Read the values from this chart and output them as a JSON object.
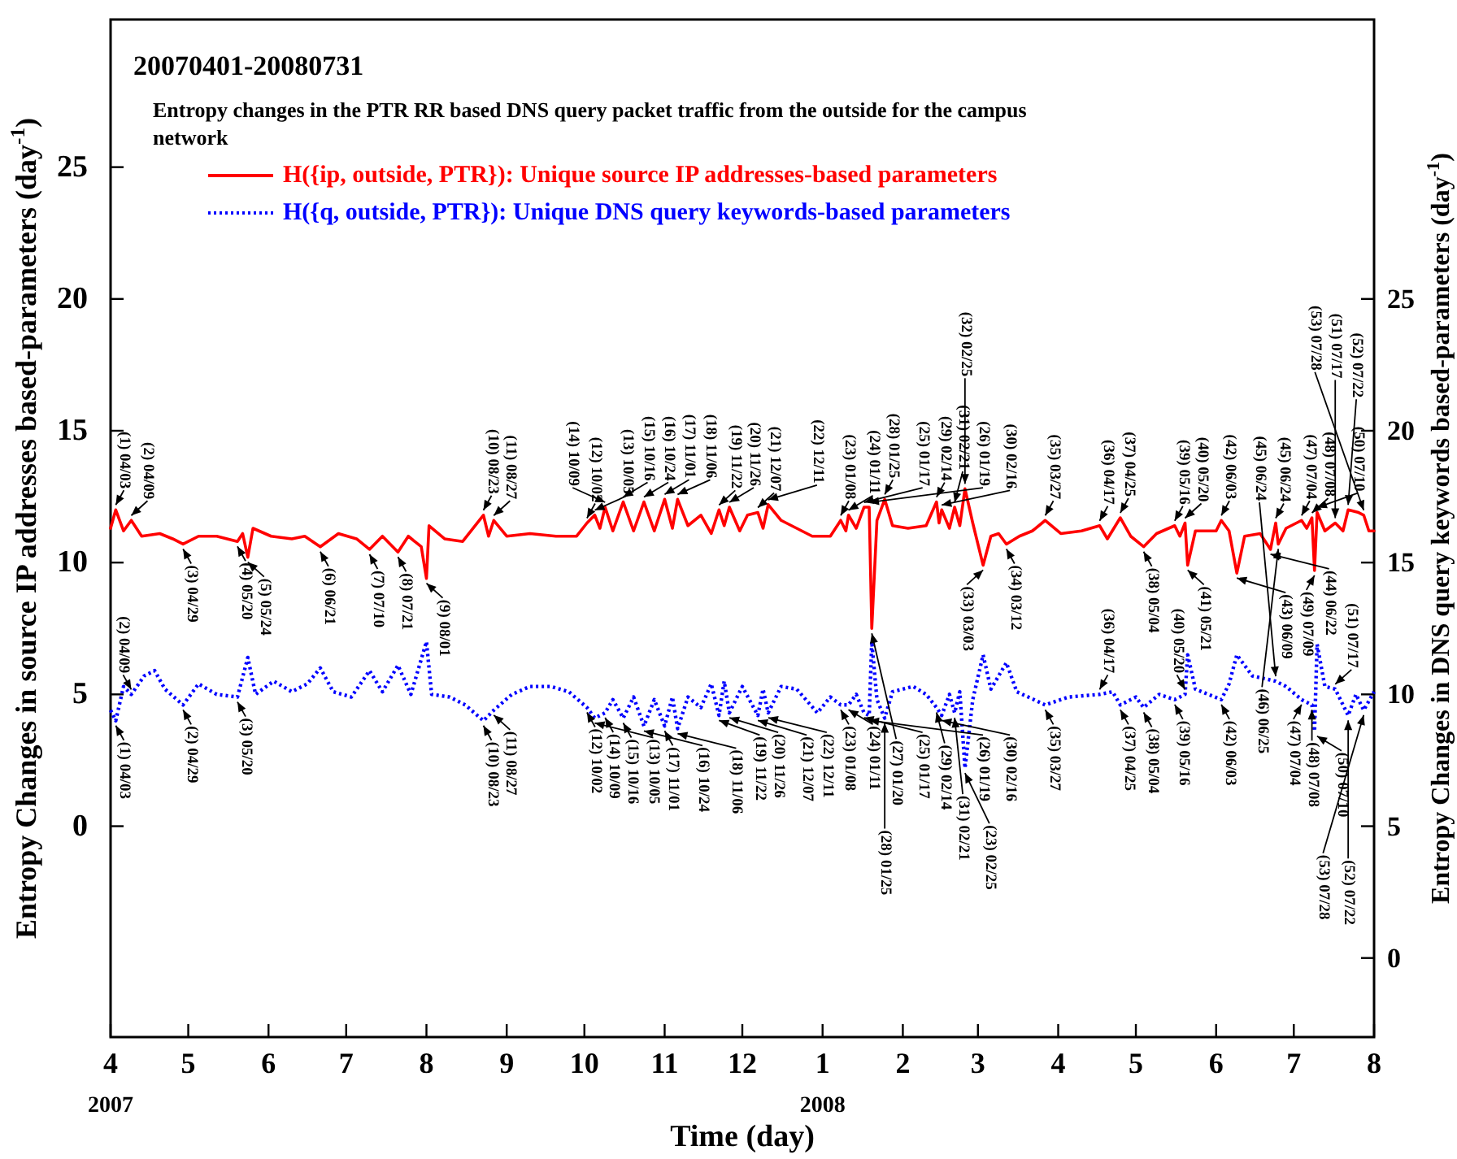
{
  "chart_data": {
    "type": "line",
    "title": "20070401-20080731",
    "subtitle": "Entropy changes in the PTR RR based DNS query packet traffic from the outside for the campus network",
    "xlabel": "Time (day)",
    "ylabel": "Entropy Changes in source IP addresses based-parameters (day$^{-1}$)",
    "y2label": "Entropy Changes in DNS query keywords based-parameters (day$^{-1}$)",
    "legend": "top left",
    "grid": false,
    "marker": "none",
    "xlim": [
      "2007-04-01",
      "2008-08-01"
    ],
    "xticks": [
      {
        "value": "2007-04-01",
        "label": "4"
      },
      {
        "value": "2007-05-01",
        "label": "5"
      },
      {
        "value": "2007-06-01",
        "label": "6"
      },
      {
        "value": "2007-07-01",
        "label": "7"
      },
      {
        "value": "2007-08-01",
        "label": "8"
      },
      {
        "value": "2007-09-01",
        "label": "9"
      },
      {
        "value": "2007-10-01",
        "label": "10"
      },
      {
        "value": "2007-11-01",
        "label": "11"
      },
      {
        "value": "2007-12-01",
        "label": "12"
      },
      {
        "value": "2008-01-01",
        "label": "1"
      },
      {
        "value": "2008-02-01",
        "label": "2"
      },
      {
        "value": "2008-03-01",
        "label": "3"
      },
      {
        "value": "2008-04-01",
        "label": "4"
      },
      {
        "value": "2008-05-01",
        "label": "5"
      },
      {
        "value": "2008-06-01",
        "label": "6"
      },
      {
        "value": "2008-07-01",
        "label": "7"
      },
      {
        "value": "2008-08-01",
        "label": "8"
      }
    ],
    "ylim": [
      -8,
      30.6
    ],
    "yticks": [
      0,
      5,
      10,
      15,
      20,
      25
    ],
    "y2lim": [
      -3,
      35.6
    ],
    "y2ticks": [
      0,
      5,
      10,
      15,
      20,
      25
    ],
    "series": [
      {
        "name": "H({ip, outside, PTR}): Unique source IP addresses-based parameters",
        "color": "#ff0000",
        "line_style": "solid",
        "x": [
          "2007-04-01",
          "2007-04-03",
          "2007-04-06",
          "2007-04-09",
          "2007-04-13",
          "2007-04-20",
          "2007-04-25",
          "2007-04-29",
          "2007-05-05",
          "2007-05-12",
          "2007-05-20",
          "2007-05-22",
          "2007-05-24",
          "2007-05-26",
          "2007-06-02",
          "2007-06-10",
          "2007-06-15",
          "2007-06-21",
          "2007-06-28",
          "2007-07-05",
          "2007-07-10",
          "2007-07-15",
          "2007-07-21",
          "2007-07-25",
          "2007-07-30",
          "2007-08-01",
          "2007-08-02",
          "2007-08-08",
          "2007-08-15",
          "2007-08-23",
          "2007-08-25",
          "2007-08-27",
          "2007-09-01",
          "2007-09-10",
          "2007-09-20",
          "2007-09-28",
          "2007-10-02",
          "2007-10-05",
          "2007-10-07",
          "2007-10-09",
          "2007-10-12",
          "2007-10-16",
          "2007-10-20",
          "2007-10-24",
          "2007-10-28",
          "2007-11-01",
          "2007-11-04",
          "2007-11-06",
          "2007-11-10",
          "2007-11-15",
          "2007-11-19",
          "2007-11-22",
          "2007-11-24",
          "2007-11-26",
          "2007-11-30",
          "2007-12-03",
          "2007-12-07",
          "2007-12-09",
          "2007-12-11",
          "2007-12-16",
          "2007-12-22",
          "2007-12-28",
          "2008-01-04",
          "2008-01-08",
          "2008-01-10",
          "2008-01-11",
          "2008-01-14",
          "2008-01-17",
          "2008-01-19",
          "2008-01-20",
          "2008-01-22",
          "2008-01-25",
          "2008-01-28",
          "2008-02-03",
          "2008-02-10",
          "2008-02-14",
          "2008-02-15",
          "2008-02-16",
          "2008-02-19",
          "2008-02-21",
          "2008-02-23",
          "2008-02-25",
          "2008-02-28",
          "2008-03-03",
          "2008-03-06",
          "2008-03-09",
          "2008-03-12",
          "2008-03-17",
          "2008-03-22",
          "2008-03-27",
          "2008-04-02",
          "2008-04-10",
          "2008-04-17",
          "2008-04-20",
          "2008-04-25",
          "2008-04-29",
          "2008-05-04",
          "2008-05-09",
          "2008-05-16",
          "2008-05-18",
          "2008-05-20",
          "2008-05-21",
          "2008-05-24",
          "2008-06-01",
          "2008-06-03",
          "2008-06-06",
          "2008-06-09",
          "2008-06-12",
          "2008-06-18",
          "2008-06-22",
          "2008-06-24",
          "2008-06-25",
          "2008-06-28",
          "2008-07-04",
          "2008-07-06",
          "2008-07-08",
          "2008-07-09",
          "2008-07-10",
          "2008-07-13",
          "2008-07-17",
          "2008-07-20",
          "2008-07-22",
          "2008-07-26",
          "2008-07-28",
          "2008-07-30",
          "2008-08-01"
        ],
        "values": [
          11.3,
          12.0,
          11.2,
          11.6,
          11.0,
          11.1,
          10.9,
          10.7,
          11.0,
          11.0,
          10.8,
          11.1,
          10.2,
          11.3,
          11.0,
          10.9,
          11.0,
          10.6,
          11.1,
          10.9,
          10.5,
          11.0,
          10.4,
          11.0,
          10.6,
          9.4,
          11.4,
          10.9,
          10.8,
          11.8,
          11.0,
          11.6,
          11.0,
          11.1,
          11.0,
          11.0,
          11.5,
          11.8,
          11.3,
          12.1,
          11.2,
          12.3,
          11.2,
          12.3,
          11.2,
          12.4,
          11.3,
          12.4,
          11.4,
          11.8,
          11.1,
          12.0,
          11.4,
          12.1,
          11.2,
          11.8,
          11.9,
          11.3,
          12.2,
          11.6,
          11.3,
          11.0,
          11.0,
          11.6,
          11.2,
          11.8,
          11.3,
          12.1,
          12.1,
          7.5,
          11.6,
          12.4,
          11.4,
          11.3,
          11.4,
          12.3,
          11.5,
          12.0,
          11.3,
          12.1,
          11.4,
          12.8,
          11.5,
          9.9,
          11.0,
          11.1,
          10.7,
          11.0,
          11.2,
          11.6,
          11.1,
          11.2,
          11.4,
          10.9,
          11.7,
          11.0,
          10.6,
          11.1,
          11.4,
          11.0,
          11.5,
          9.9,
          11.2,
          11.2,
          11.6,
          11.2,
          9.6,
          11.0,
          11.1,
          10.5,
          11.5,
          10.7,
          11.3,
          11.6,
          11.3,
          11.7,
          9.7,
          11.9,
          11.2,
          11.5,
          11.2,
          12.0,
          11.9,
          11.8,
          11.2,
          11.2
        ]
      },
      {
        "name": "H({q, outside, PTR}): Unique DNS query keywords-based parameters",
        "color": "#0000ff",
        "line_style": "dotted",
        "axis": "y2",
        "x": [
          "2007-04-01",
          "2007-04-03",
          "2007-04-06",
          "2007-04-09",
          "2007-04-14",
          "2007-04-18",
          "2007-04-22",
          "2007-04-29",
          "2007-05-05",
          "2007-05-12",
          "2007-05-20",
          "2007-05-24",
          "2007-05-27",
          "2007-06-03",
          "2007-06-10",
          "2007-06-16",
          "2007-06-21",
          "2007-06-26",
          "2007-07-03",
          "2007-07-10",
          "2007-07-15",
          "2007-07-21",
          "2007-07-26",
          "2007-08-01",
          "2007-08-03",
          "2007-08-10",
          "2007-08-16",
          "2007-08-23",
          "2007-08-27",
          "2007-09-03",
          "2007-09-10",
          "2007-09-18",
          "2007-09-25",
          "2007-10-02",
          "2007-10-05",
          "2007-10-09",
          "2007-10-12",
          "2007-10-16",
          "2007-10-20",
          "2007-10-24",
          "2007-10-28",
          "2007-11-01",
          "2007-11-04",
          "2007-11-06",
          "2007-11-10",
          "2007-11-15",
          "2007-11-19",
          "2007-11-22",
          "2007-11-24",
          "2007-11-26",
          "2007-12-01",
          "2007-12-07",
          "2007-12-09",
          "2007-12-11",
          "2007-12-16",
          "2007-12-22",
          "2007-12-30",
          "2008-01-04",
          "2008-01-08",
          "2008-01-11",
          "2008-01-14",
          "2008-01-17",
          "2008-01-19",
          "2008-01-20",
          "2008-01-22",
          "2008-01-25",
          "2008-01-28",
          "2008-02-05",
          "2008-02-10",
          "2008-02-14",
          "2008-02-16",
          "2008-02-19",
          "2008-02-21",
          "2008-02-23",
          "2008-02-25",
          "2008-02-28",
          "2008-03-03",
          "2008-03-06",
          "2008-03-12",
          "2008-03-16",
          "2008-03-27",
          "2008-04-05",
          "2008-04-17",
          "2008-04-22",
          "2008-04-25",
          "2008-05-01",
          "2008-05-04",
          "2008-05-10",
          "2008-05-16",
          "2008-05-20",
          "2008-05-21",
          "2008-05-24",
          "2008-06-03",
          "2008-06-06",
          "2008-06-09",
          "2008-06-15",
          "2008-06-24",
          "2008-06-28",
          "2008-07-04",
          "2008-07-08",
          "2008-07-09",
          "2008-07-10",
          "2008-07-13",
          "2008-07-17",
          "2008-07-22",
          "2008-07-25",
          "2008-07-28",
          "2008-08-01"
        ],
        "values": [
          9.4,
          9.0,
          10.3,
          10.0,
          10.7,
          10.9,
          10.2,
          9.6,
          10.4,
          10.0,
          9.9,
          11.4,
          10.0,
          10.5,
          10.1,
          10.4,
          11.0,
          10.1,
          9.9,
          10.9,
          10.1,
          11.1,
          10.0,
          12.0,
          10.0,
          9.9,
          9.6,
          9.0,
          9.4,
          10.0,
          10.3,
          10.3,
          10.1,
          9.5,
          9.1,
          9.3,
          9.8,
          9.1,
          9.9,
          8.8,
          9.8,
          8.8,
          9.9,
          8.7,
          9.9,
          9.5,
          10.4,
          9.2,
          10.5,
          9.3,
          10.3,
          9.2,
          10.2,
          9.3,
          10.3,
          10.2,
          9.3,
          9.9,
          9.6,
          9.6,
          10.0,
          9.3,
          9.2,
          12.0,
          9.8,
          9.1,
          10.1,
          10.3,
          10.0,
          9.5,
          9.2,
          10.0,
          9.3,
          10.1,
          7.2,
          9.8,
          11.5,
          10.2,
          11.2,
          10.1,
          9.6,
          9.9,
          10.0,
          10.1,
          9.6,
          9.9,
          9.5,
          10.0,
          9.8,
          10.0,
          11.5,
          10.2,
          9.8,
          10.4,
          11.5,
          10.7,
          10.5,
          10.3,
          9.8,
          9.6,
          8.6,
          11.9,
          10.3,
          10.2,
          9.2,
          10.0,
          9.4,
          10.1
        ]
      }
    ],
    "annotations": [
      {
        "text": "(1) 04/03",
        "x": "2007-04-03",
        "y": 12.0
      },
      {
        "text": "(2) 04/09",
        "x": "2007-04-09",
        "y": 11.6
      },
      {
        "text": "(3) 04/29",
        "x": "2007-04-29",
        "y": 10.7
      },
      {
        "text": "(4) 05/20",
        "x": "2007-05-20",
        "y": 10.8
      },
      {
        "text": "(5) 05/24",
        "x": "2007-05-24",
        "y": 10.2
      },
      {
        "text": "(6) 06/21",
        "x": "2007-06-21",
        "y": 10.6
      },
      {
        "text": "(7) 07/10",
        "x": "2007-07-10",
        "y": 10.5
      },
      {
        "text": "(8) 07/21",
        "x": "2007-07-21",
        "y": 10.4
      },
      {
        "text": "(9) 08/01",
        "x": "2007-08-01",
        "y": 9.4
      },
      {
        "text": "(10) 08/23",
        "x": "2007-08-23",
        "y": 11.8
      },
      {
        "text": "(11) 08/27",
        "x": "2007-08-27",
        "y": 11.6
      },
      {
        "text": "(12) 10/02",
        "x": "2007-10-02",
        "y": 11.5
      },
      {
        "text": "(13) 10/05",
        "x": "2007-10-05",
        "y": 11.8
      },
      {
        "text": "(14) 10/09",
        "x": "2007-10-09",
        "y": 12.1
      },
      {
        "text": "(15) 10/16",
        "x": "2007-10-16",
        "y": 12.3
      },
      {
        "text": "(16) 10/24",
        "x": "2007-10-24",
        "y": 12.3
      },
      {
        "text": "(17) 11/01",
        "x": "2007-11-01",
        "y": 12.4
      },
      {
        "text": "(18) 11/06",
        "x": "2007-11-06",
        "y": 12.4
      },
      {
        "text": "(19) 11/22",
        "x": "2007-11-22",
        "y": 12.0
      },
      {
        "text": "(20) 11/26",
        "x": "2007-11-26",
        "y": 12.1
      },
      {
        "text": "(21) 12/07",
        "x": "2007-12-07",
        "y": 11.9
      },
      {
        "text": "(22) 12/11",
        "x": "2007-12-11",
        "y": 12.2
      },
      {
        "text": "(23) 01/08",
        "x": "2008-01-08",
        "y": 11.6
      },
      {
        "text": "(24) 01/11",
        "x": "2008-01-11",
        "y": 11.8
      },
      {
        "text": "(25) 01/17",
        "x": "2008-01-17",
        "y": 12.1
      },
      {
        "text": "(26) 01/19",
        "x": "2008-01-19",
        "y": 12.1
      },
      {
        "text": "(27) 01/20",
        "x": "2008-01-20",
        "y": 7.5
      },
      {
        "text": "(28) 01/25",
        "x": "2008-01-25",
        "y": 12.4
      },
      {
        "text": "(29) 02/14",
        "x": "2008-02-14",
        "y": 12.3
      },
      {
        "text": "(30) 02/16",
        "x": "2008-02-16",
        "y": 12.0
      },
      {
        "text": "(31) 02/21",
        "x": "2008-02-21",
        "y": 12.1
      },
      {
        "text": "(32) 02/25",
        "x": "2008-02-25",
        "y": 12.8
      },
      {
        "text": "(33) 03/03",
        "x": "2008-03-03",
        "y": 9.9
      },
      {
        "text": "(34) 03/12",
        "x": "2008-03-12",
        "y": 10.7
      },
      {
        "text": "(35) 03/27",
        "x": "2008-03-27",
        "y": 11.6
      },
      {
        "text": "(36) 04/17",
        "x": "2008-04-17",
        "y": 11.4
      },
      {
        "text": "(37) 04/25",
        "x": "2008-04-25",
        "y": 11.7
      },
      {
        "text": "(38) 05/04",
        "x": "2008-05-04",
        "y": 10.6
      },
      {
        "text": "(39) 05/16",
        "x": "2008-05-16",
        "y": 11.4
      },
      {
        "text": "(40) 05/20",
        "x": "2008-05-20",
        "y": 11.5
      },
      {
        "text": "(41) 05/21",
        "x": "2008-05-21",
        "y": 9.9
      },
      {
        "text": "(42) 06/03",
        "x": "2008-06-03",
        "y": 11.6
      },
      {
        "text": "(43) 06/09",
        "x": "2008-06-09",
        "y": 9.6
      },
      {
        "text": "(44) 06/22",
        "x": "2008-06-22",
        "y": 10.5
      },
      {
        "text": "(45) 06/24",
        "x": "2008-06-24",
        "y": 11.5
      },
      {
        "text": "(46) 06/25",
        "x": "2008-06-25",
        "y": 10.7
      },
      {
        "text": "(47) 07/04",
        "x": "2008-07-04",
        "y": 11.6
      },
      {
        "text": "(48) 07/08",
        "x": "2008-07-08",
        "y": 11.7
      },
      {
        "text": "(49) 07/09",
        "x": "2008-07-09",
        "y": 9.7
      },
      {
        "text": "(50) 07/10",
        "x": "2008-07-10",
        "y": 11.9
      },
      {
        "text": "(51) 07/17",
        "x": "2008-07-17",
        "y": 11.5
      },
      {
        "text": "(52) 07/22",
        "x": "2008-07-22",
        "y": 12.0
      },
      {
        "text": "(53) 07/28",
        "x": "2008-07-28",
        "y": 11.8
      },
      {
        "text": "(1) 04/03",
        "x": "2007-04-03",
        "y": 4.0
      },
      {
        "text": "(2) 04/09",
        "x": "2007-04-09",
        "y": 5.0
      },
      {
        "text": "(2) 04/29",
        "x": "2007-04-29",
        "y": 4.6
      },
      {
        "text": "(3) 05/20",
        "x": "2007-05-20",
        "y": 4.9
      },
      {
        "text": "(10) 08/23",
        "x": "2007-08-23",
        "y": 4.0
      },
      {
        "text": "(11) 08/27",
        "x": "2007-08-27",
        "y": 4.4
      },
      {
        "text": "(12) 10/02",
        "x": "2007-10-02",
        "y": 4.5
      },
      {
        "text": "(13) 10/05",
        "x": "2007-10-05",
        "y": 4.1
      },
      {
        "text": "(14) 10/09",
        "x": "2007-10-09",
        "y": 4.3
      },
      {
        "text": "(15) 10/16",
        "x": "2007-10-16",
        "y": 4.1
      },
      {
        "text": "(16) 10/24",
        "x": "2007-10-24",
        "y": 3.8
      },
      {
        "text": "(17) 11/01",
        "x": "2007-11-01",
        "y": 3.8
      },
      {
        "text": "(18) 11/06",
        "x": "2007-11-06",
        "y": 3.7
      },
      {
        "text": "(19) 11/22",
        "x": "2007-11-22",
        "y": 4.2
      },
      {
        "text": "(20) 11/26",
        "x": "2007-11-26",
        "y": 4.3
      },
      {
        "text": "(21) 12/07",
        "x": "2007-12-07",
        "y": 4.2
      },
      {
        "text": "(22) 12/11",
        "x": "2007-12-11",
        "y": 4.3
      },
      {
        "text": "(23) 01/08",
        "x": "2008-01-08",
        "y": 4.6
      },
      {
        "text": "(24) 01/11",
        "x": "2008-01-11",
        "y": 4.6
      },
      {
        "text": "(25) 01/17",
        "x": "2008-01-17",
        "y": 4.3
      },
      {
        "text": "(26) 01/19",
        "x": "2008-01-19",
        "y": 4.2
      },
      {
        "text": "(28) 01/25",
        "x": "2008-01-25",
        "y": 4.1
      },
      {
        "text": "(29) 02/14",
        "x": "2008-02-14",
        "y": 4.5
      },
      {
        "text": "(30) 02/16",
        "x": "2008-02-16",
        "y": 4.2
      },
      {
        "text": "(31) 02/21",
        "x": "2008-02-21",
        "y": 4.3
      },
      {
        "text": "(23) 02/25",
        "x": "2008-02-25",
        "y": 2.2
      },
      {
        "text": "(35) 03/27",
        "x": "2008-03-27",
        "y": 4.6
      },
      {
        "text": "(36) 04/17",
        "x": "2008-04-17",
        "y": 5.0
      },
      {
        "text": "(37) 04/25",
        "x": "2008-04-25",
        "y": 4.6
      },
      {
        "text": "(38) 05/04",
        "x": "2008-05-04",
        "y": 4.5
      },
      {
        "text": "(39) 05/16",
        "x": "2008-05-16",
        "y": 4.8
      },
      {
        "text": "(40) 05/20",
        "x": "2008-05-20",
        "y": 5.0
      },
      {
        "text": "(42) 06/03",
        "x": "2008-06-03",
        "y": 4.8
      },
      {
        "text": "(45) 06/24",
        "x": "2008-06-24",
        "y": 5.5
      },
      {
        "text": "(47) 07/04",
        "x": "2008-07-04",
        "y": 4.8
      },
      {
        "text": "(48) 07/08",
        "x": "2008-07-08",
        "y": 4.6
      },
      {
        "text": "(50) 07/10",
        "x": "2008-07-10",
        "y": 3.6
      },
      {
        "text": "(51) 07/17",
        "x": "2008-07-17",
        "y": 5.2
      },
      {
        "text": "(52) 07/22",
        "x": "2008-07-22",
        "y": 4.2
      },
      {
        "text": "(53) 07/28",
        "x": "2008-07-28",
        "y": 4.4
      },
      "2007",
      "2008"
    ]
  }
}
